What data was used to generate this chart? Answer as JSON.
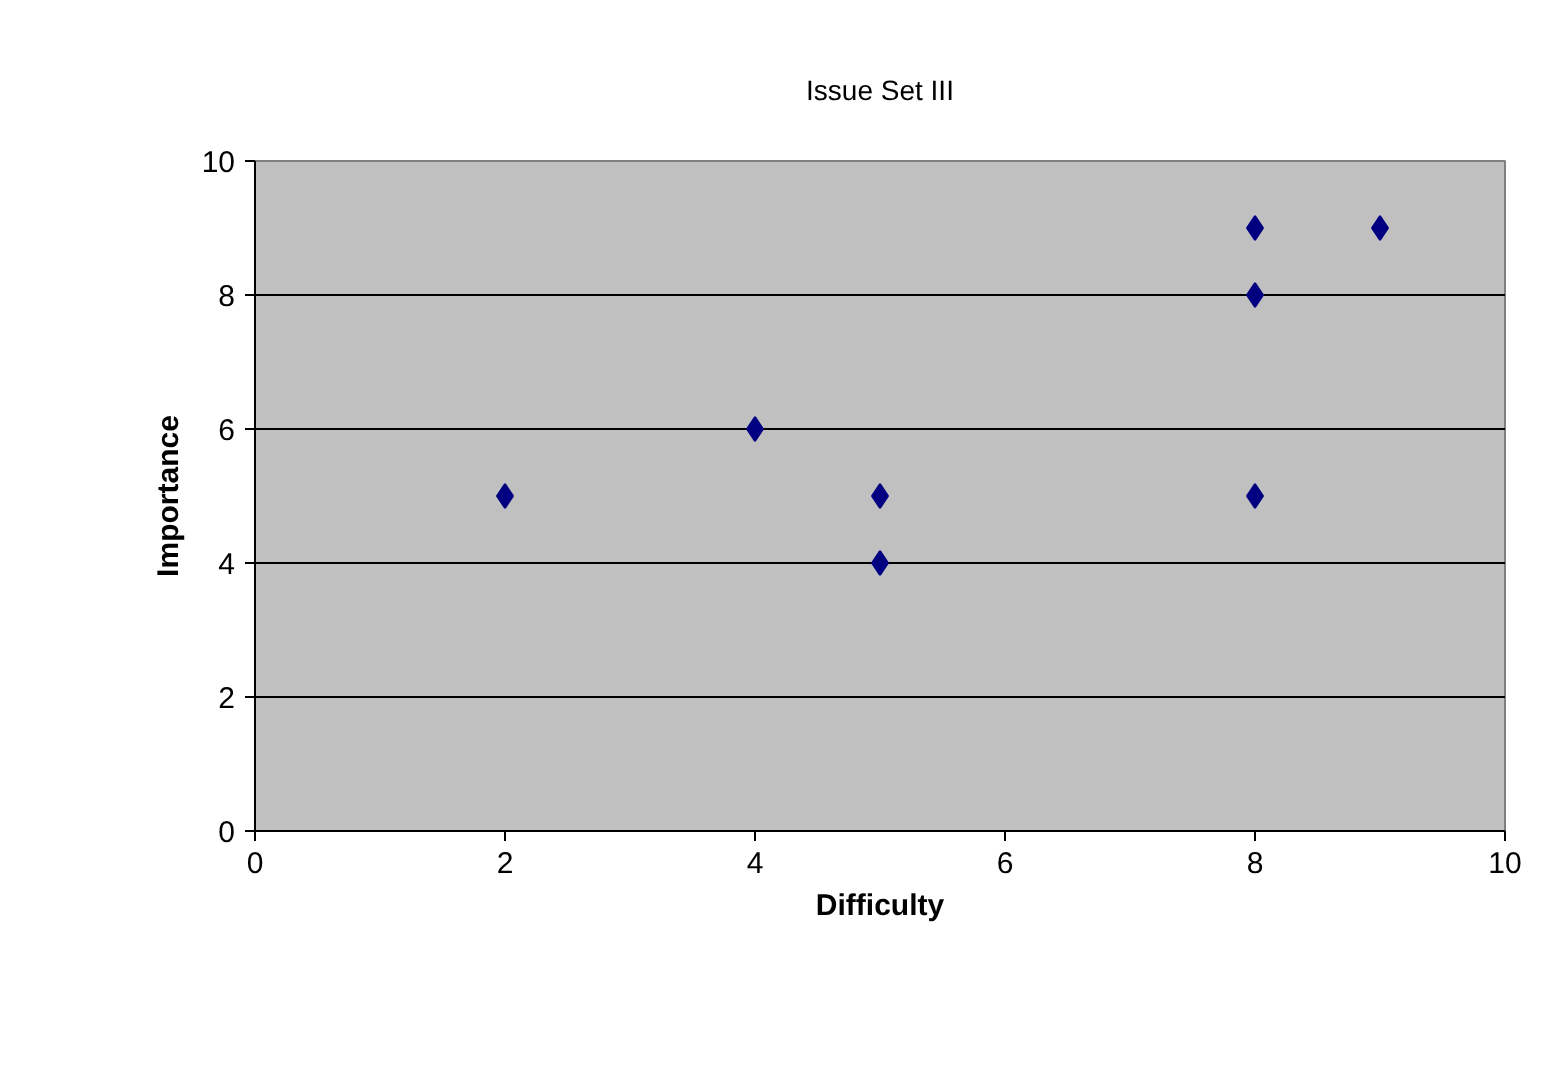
{
  "chart_data": {
    "type": "scatter",
    "title": "Issue Set III",
    "xlabel": "Difficulty",
    "ylabel": "Importance",
    "x": [
      2,
      4,
      5,
      5,
      8,
      8,
      8,
      9
    ],
    "series": [
      {
        "color": "#000080",
        "values": [
          5,
          6,
          5,
          4,
          9,
          8,
          5,
          9
        ]
      }
    ],
    "xlim": [
      0,
      10
    ],
    "ylim": [
      0,
      10
    ],
    "xticks": [
      0,
      2,
      4,
      6,
      8,
      10
    ],
    "yticks": [
      0,
      2,
      4,
      6,
      8,
      10
    ],
    "grid": "y",
    "marker": "diamond"
  }
}
